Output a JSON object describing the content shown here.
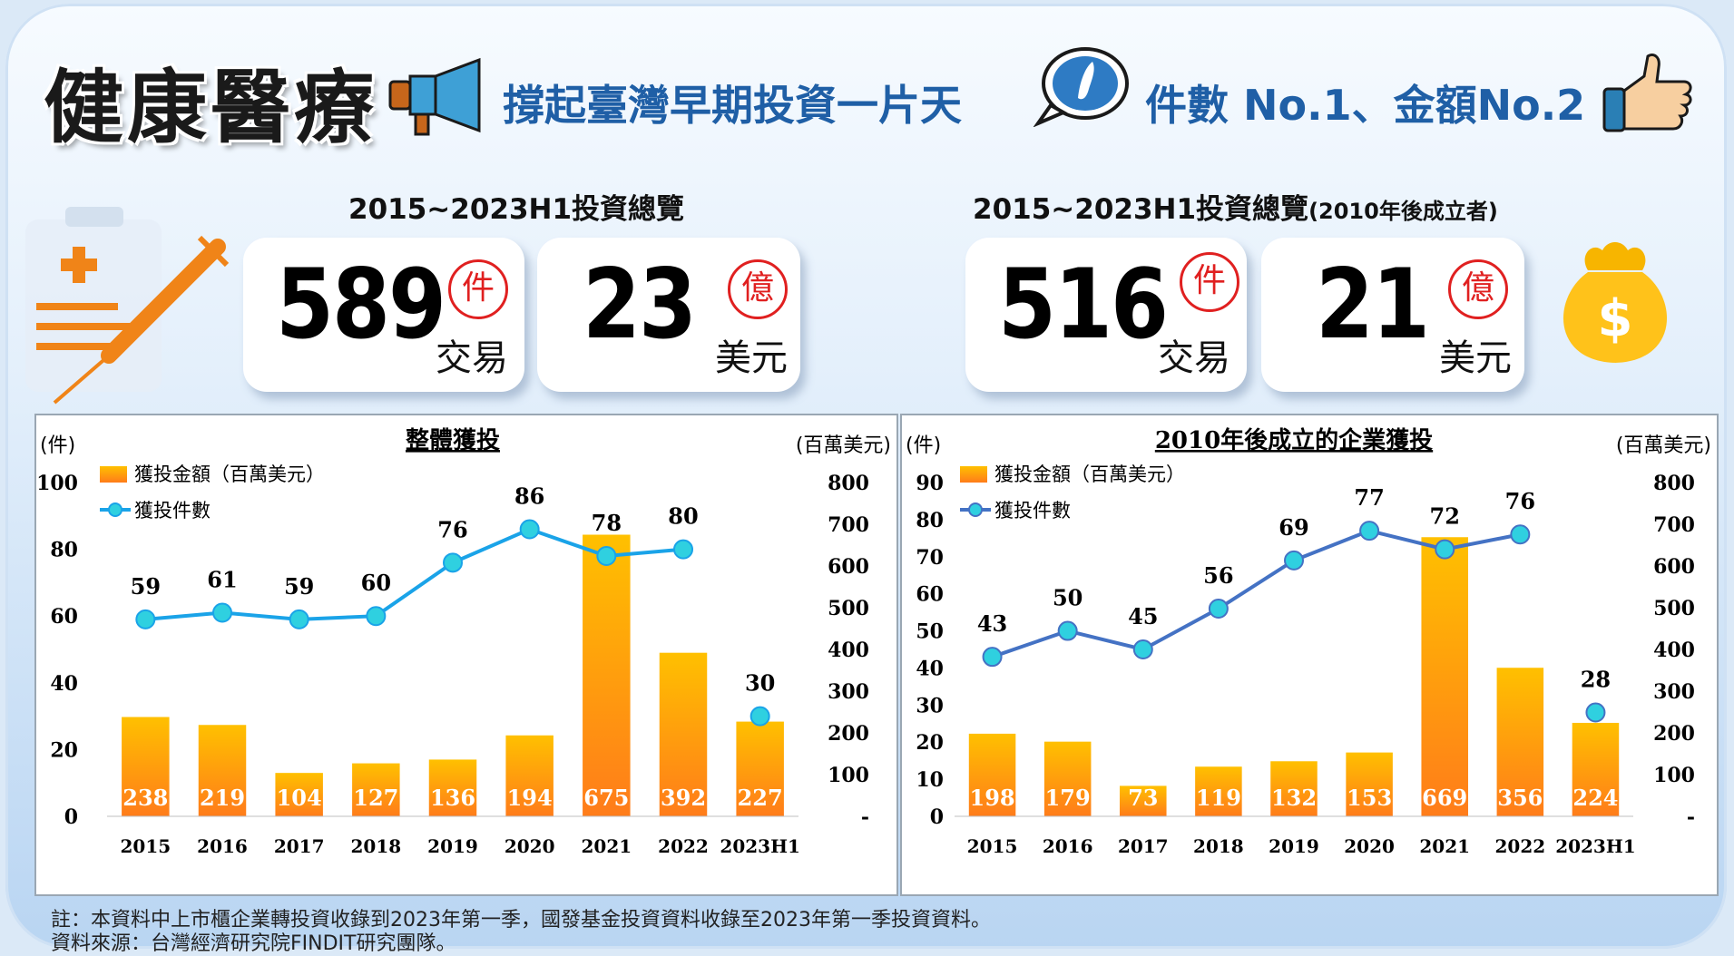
{
  "header": {
    "title": "健康醫療",
    "slogan": "撐起臺灣早期投資一片天",
    "rank": "件數 No.1、金額No.2"
  },
  "overview_left": {
    "title": "2015~2023H1投資總覽",
    "deals": {
      "value": "589",
      "stamp": "件",
      "unit": "交易"
    },
    "amount": {
      "value": "23",
      "stamp": "億",
      "unit": "美元"
    }
  },
  "overview_right": {
    "title": "2015~2023H1投資總覽",
    "title_suffix": "(2010年後成立者)",
    "deals": {
      "value": "516",
      "stamp": "件",
      "unit": "交易"
    },
    "amount": {
      "value": "21",
      "stamp": "億",
      "unit": "美元"
    }
  },
  "colors": {
    "bar_top": "#ffc000",
    "bar_bottom": "#ff7c1a",
    "line_left": "#1aa3e8",
    "line_right": "#4472c4",
    "marker": "#2fd0e0"
  },
  "chart_data": [
    {
      "type": "bar",
      "title": "整體獲投",
      "categories": [
        "2015",
        "2016",
        "2017",
        "2018",
        "2019",
        "2020",
        "2021",
        "2022",
        "2023H1"
      ],
      "y_left_unit": "(件)",
      "y_right_unit": "(百萬美元)",
      "ylim_left": [
        0,
        100
      ],
      "ylim_right": [
        0,
        800
      ],
      "y_left_ticks": [
        "0",
        "20",
        "40",
        "60",
        "80",
        "100"
      ],
      "y_right_ticks": [
        "-",
        "100",
        "200",
        "300",
        "400",
        "500",
        "600",
        "700",
        "800"
      ],
      "series": [
        {
          "name": "獲投金額（百萬美元）",
          "kind": "bar",
          "axis": "right",
          "values": [
            238,
            219,
            104,
            127,
            136,
            194,
            675,
            392,
            227
          ]
        },
        {
          "name": "獲投件數",
          "kind": "line",
          "axis": "left",
          "values": [
            59,
            61,
            59,
            60,
            76,
            86,
            78,
            80,
            30
          ]
        }
      ]
    },
    {
      "type": "bar",
      "title": "2010年後成立的企業獲投",
      "categories": [
        "2015",
        "2016",
        "2017",
        "2018",
        "2019",
        "2020",
        "2021",
        "2022",
        "2023H1"
      ],
      "y_left_unit": "(件)",
      "y_right_unit": "(百萬美元)",
      "ylim_left": [
        0,
        90
      ],
      "ylim_right": [
        0,
        800
      ],
      "y_left_ticks": [
        "0",
        "10",
        "20",
        "30",
        "40",
        "50",
        "60",
        "70",
        "80",
        "90"
      ],
      "y_right_ticks": [
        "-",
        "100",
        "200",
        "300",
        "400",
        "500",
        "600",
        "700",
        "800"
      ],
      "series": [
        {
          "name": "獲投金額（百萬美元）",
          "kind": "bar",
          "axis": "right",
          "values": [
            198,
            179,
            73,
            119,
            132,
            153,
            669,
            356,
            224
          ]
        },
        {
          "name": "獲投件數",
          "kind": "line",
          "axis": "left",
          "values": [
            43,
            50,
            45,
            56,
            69,
            77,
            72,
            76,
            28
          ]
        }
      ]
    }
  ],
  "footnote": {
    "note": "註：本資料中上市櫃企業轉投資收錄到2023年第一季，國發基金投資資料收錄至2023年第一季投資資料。",
    "source": "資料來源：台灣經濟研究院FINDIT研究團隊。"
  }
}
